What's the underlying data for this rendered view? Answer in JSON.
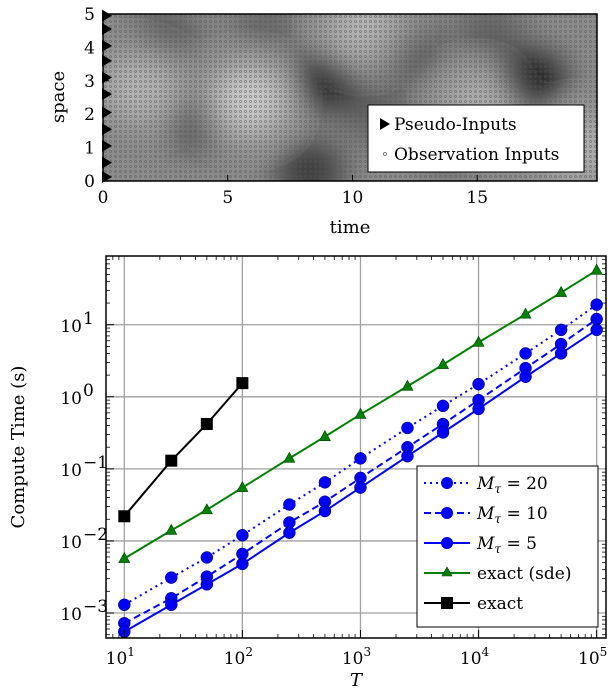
{
  "chart_data": [
    {
      "type": "heatmap",
      "xlabel": "time",
      "ylabel": "space",
      "xlim": [
        0,
        19.8
      ],
      "ylim": [
        0,
        5
      ],
      "x_ticks": [
        0,
        5,
        10,
        15
      ],
      "y_ticks": [
        0,
        1,
        2,
        3,
        4,
        5
      ],
      "legend_position": "lower-right",
      "legend": [
        "Pseudo-Inputs",
        "Observation Inputs"
      ],
      "pseudo_inputs": [
        0.12,
        0.55,
        1.05,
        1.55,
        2.05,
        2.6,
        3.1,
        3.6,
        4.05,
        4.55,
        4.95
      ],
      "dark_regions": [
        {
          "t": 2.5,
          "s": 4.3,
          "strength": 0.35
        },
        {
          "t": 3.8,
          "s": 1.8,
          "strength": 0.45
        },
        {
          "t": 8.3,
          "s": 0.3,
          "strength": 0.6
        },
        {
          "t": 8.9,
          "s": 3.0,
          "strength": 0.7
        },
        {
          "t": 12.3,
          "s": 3.8,
          "strength": 0.4
        },
        {
          "t": 13.8,
          "s": 1.2,
          "strength": 0.35
        },
        {
          "t": 17.2,
          "s": 3.0,
          "strength": 0.8
        },
        {
          "t": 11.0,
          "s": 2.0,
          "strength": 0.3
        },
        {
          "t": 6.5,
          "s": 4.6,
          "strength": 0.25
        },
        {
          "t": 15.5,
          "s": 4.4,
          "strength": 0.3
        }
      ],
      "light_regions": [
        {
          "t": 5.8,
          "s": 2.4,
          "strength": 0.55
        },
        {
          "t": 1.5,
          "s": 2.8,
          "strength": 0.35
        },
        {
          "t": 10.5,
          "s": 4.6,
          "strength": 0.35
        },
        {
          "t": 15.0,
          "s": 2.2,
          "strength": 0.3
        },
        {
          "t": 19.0,
          "s": 1.0,
          "strength": 0.3
        }
      ]
    },
    {
      "type": "line",
      "xlabel": "T",
      "ylabel": "Compute Time (s)",
      "x_scale": "log",
      "y_scale": "log",
      "xlim": [
        7,
        120000
      ],
      "ylim": [
        0.00045,
        90
      ],
      "x_ticks": [
        10,
        100,
        1000,
        10000,
        100000
      ],
      "y_ticks": [
        0.001,
        0.01,
        0.1,
        1,
        10
      ],
      "grid": true,
      "legend_position": "lower-right",
      "series": [
        {
          "name": "M_τ = 20",
          "color": "#0000ff",
          "marker": "circle",
          "linestyle": "dotted",
          "x": [
            10,
            25,
            50,
            100,
            250,
            500,
            1000,
            2500,
            5000,
            10000,
            25000,
            50000,
            100000
          ],
          "y": [
            0.0013,
            0.0031,
            0.0059,
            0.012,
            0.032,
            0.065,
            0.14,
            0.37,
            0.75,
            1.5,
            4.0,
            8.5,
            19
          ]
        },
        {
          "name": "M_τ = 10",
          "color": "#0000ff",
          "marker": "circle",
          "linestyle": "dashed",
          "x": [
            10,
            25,
            50,
            100,
            250,
            500,
            1000,
            2500,
            5000,
            10000,
            25000,
            50000,
            100000
          ],
          "y": [
            0.00072,
            0.0016,
            0.0032,
            0.0066,
            0.018,
            0.035,
            0.075,
            0.2,
            0.42,
            0.9,
            2.5,
            5.4,
            12
          ]
        },
        {
          "name": "M_τ = 5",
          "color": "#0000ff",
          "marker": "circle",
          "linestyle": "solid",
          "x": [
            10,
            25,
            50,
            100,
            250,
            500,
            1000,
            2500,
            5000,
            10000,
            25000,
            50000,
            100000
          ],
          "y": [
            0.00055,
            0.0013,
            0.0025,
            0.0048,
            0.013,
            0.026,
            0.055,
            0.15,
            0.32,
            0.68,
            1.9,
            4.0,
            8.5
          ]
        },
        {
          "name": "exact (sde)",
          "color": "#008000",
          "marker": "triangle",
          "linestyle": "solid",
          "x": [
            10,
            25,
            50,
            100,
            250,
            500,
            1000,
            2500,
            5000,
            10000,
            25000,
            50000,
            100000
          ],
          "y": [
            0.0057,
            0.014,
            0.027,
            0.055,
            0.14,
            0.28,
            0.57,
            1.4,
            2.8,
            5.7,
            14,
            28,
            57
          ]
        },
        {
          "name": "exact",
          "color": "#000000",
          "marker": "square",
          "linestyle": "solid",
          "x": [
            10,
            25,
            50,
            100
          ],
          "y": [
            0.022,
            0.13,
            0.42,
            1.55
          ]
        }
      ]
    }
  ],
  "labels": {
    "top_xlabel": "time",
    "top_ylabel": "space",
    "legend_pseudo": "Pseudo-Inputs",
    "legend_obs": "Observation Inputs",
    "bottom_ylabel": "Compute Time (s)",
    "bottom_xlabel": "T",
    "top_xticks": [
      "0",
      "5",
      "10",
      "15"
    ],
    "top_yticks": [
      "0",
      "1",
      "2",
      "3",
      "4",
      "5"
    ],
    "bottom_xticks": [
      "1",
      "2",
      "3",
      "4",
      "5"
    ],
    "bottom_yticks": [
      "−3",
      "−2",
      "−1",
      "0",
      "1"
    ],
    "tick_base": "10",
    "legend": {
      "m20_sym": "M",
      "m20_sub": "τ",
      "m20_val": " = 20",
      "m10_sym": "M",
      "m10_sub": "τ",
      "m10_val": " = 10",
      "m5_sym": "M",
      "m5_sub": "τ",
      "m5_val": " = 5",
      "sde": "exact (sde)",
      "exact": "exact"
    }
  }
}
